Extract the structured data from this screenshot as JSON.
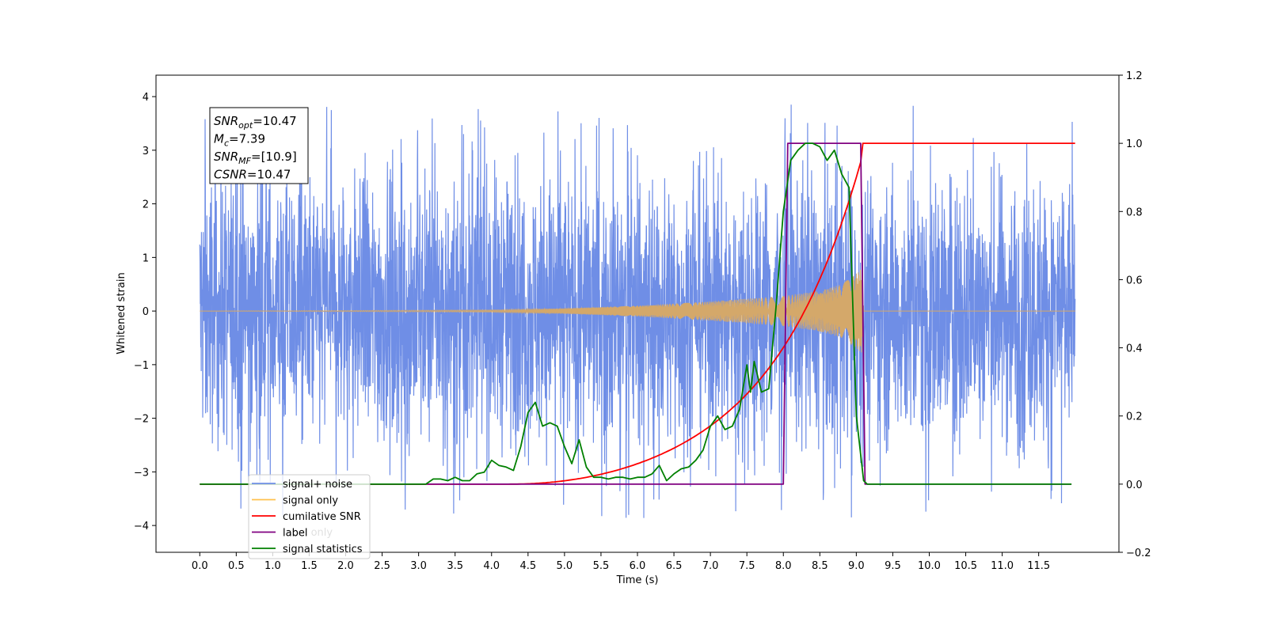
{
  "chart_data": {
    "type": "line",
    "xlabel": "Time (s)",
    "ylabel": "Whitened strain",
    "xlim": [
      -0.6,
      12.6
    ],
    "ylim_left": [
      -4.5,
      4.4
    ],
    "ylim_right": [
      -0.2,
      1.2
    ],
    "x_ticks": [
      "0.0",
      "0.5",
      "1.0",
      "1.5",
      "2.0",
      "2.5",
      "3.0",
      "3.5",
      "4.0",
      "4.5",
      "5.0",
      "5.5",
      "6.0",
      "6.5",
      "7.0",
      "7.5",
      "8.0",
      "8.5",
      "9.0",
      "9.5",
      "10.0",
      "10.5",
      "11.0",
      "11.5"
    ],
    "y_ticks_left": [
      "−4",
      "−3",
      "−2",
      "−1",
      "0",
      "1",
      "2",
      "3",
      "4"
    ],
    "y_ticks_right": [
      "−0.2",
      "0.0",
      "0.2",
      "0.4",
      "0.6",
      "0.8",
      "1.0",
      "1.2"
    ],
    "annotation": {
      "lines": [
        {
          "base": "SNR",
          "sub": "opt",
          "value": "=10.47"
        },
        {
          "base": "M",
          "sub": "c",
          "value": "=7.39"
        },
        {
          "base": "SNR",
          "sub": "MF",
          "value": "=[10.9]"
        },
        {
          "base": "CSNR",
          "sub": "",
          "value": "=10.47"
        }
      ]
    },
    "legend": {
      "location": "lower-left",
      "entries": [
        {
          "label": "signal+ noise",
          "color": "#6f8ee6"
        },
        {
          "label": "signal only",
          "color": "#ffc04d"
        },
        {
          "label": "cumilative SNR",
          "color": "#ff0000"
        },
        {
          "label": "label",
          "color": "#800080"
        },
        {
          "label": "signal statistics",
          "color": "#008000"
        }
      ],
      "hidden_text": "label only"
    },
    "series": [
      {
        "name": "signal+ noise",
        "axis": "left",
        "color": "#6f8ee6",
        "x_range": [
          0.0,
          12.0
        ],
        "envelope_typical": 2.0,
        "spike_max": 4.0,
        "spike_min": -4.1
      },
      {
        "name": "signal only",
        "axis": "left",
        "color": "#d4a86a",
        "x_range": [
          0.0,
          12.0
        ],
        "amplitude_envelope": {
          "x": [
            0.0,
            4.0,
            5.0,
            6.0,
            7.0,
            8.0,
            8.5,
            8.8,
            9.0,
            9.08,
            9.1,
            12.0
          ],
          "y": [
            0.0,
            0.02,
            0.05,
            0.1,
            0.18,
            0.28,
            0.38,
            0.5,
            0.7,
            0.8,
            0.0,
            0.0
          ]
        }
      },
      {
        "name": "cumilative SNR",
        "axis": "right",
        "color": "#ff0000",
        "x": [
          0.0,
          4.0,
          4.5,
          5.0,
          5.5,
          6.0,
          6.5,
          7.0,
          7.5,
          8.0,
          8.5,
          8.8,
          9.0,
          9.08,
          9.1,
          12.0
        ],
        "y": [
          0.0,
          0.0,
          0.003,
          0.015,
          0.05,
          0.11,
          0.17,
          0.23,
          0.31,
          0.42,
          0.57,
          0.7,
          0.85,
          0.96,
          1.0,
          1.0
        ]
      },
      {
        "name": "label",
        "axis": "right",
        "color": "#800080",
        "x": [
          0.0,
          8.0,
          8.06,
          9.06,
          9.12,
          11.95
        ],
        "y": [
          0.0,
          0.0,
          1.0,
          1.0,
          0.0,
          0.0
        ]
      },
      {
        "name": "signal statistics",
        "axis": "right",
        "color": "#008000",
        "x": [
          0.0,
          3.1,
          3.2,
          3.3,
          3.4,
          3.5,
          3.6,
          3.7,
          3.8,
          3.9,
          4.0,
          4.1,
          4.2,
          4.3,
          4.4,
          4.5,
          4.6,
          4.7,
          4.8,
          4.9,
          5.0,
          5.1,
          5.2,
          5.3,
          5.4,
          5.5,
          5.6,
          5.7,
          5.8,
          5.9,
          6.0,
          6.1,
          6.2,
          6.3,
          6.4,
          6.5,
          6.6,
          6.7,
          6.8,
          6.9,
          7.0,
          7.1,
          7.2,
          7.3,
          7.4,
          7.5,
          7.55,
          7.6,
          7.7,
          7.8,
          7.9,
          8.0,
          8.1,
          8.2,
          8.3,
          8.4,
          8.5,
          8.6,
          8.7,
          8.8,
          8.9,
          9.0,
          9.1,
          9.15,
          11.95
        ],
        "y": [
          0.0,
          0.0,
          0.015,
          0.015,
          0.01,
          0.02,
          0.01,
          0.01,
          0.03,
          0.035,
          0.07,
          0.055,
          0.05,
          0.04,
          0.11,
          0.21,
          0.24,
          0.17,
          0.18,
          0.17,
          0.11,
          0.06,
          0.13,
          0.05,
          0.02,
          0.02,
          0.015,
          0.02,
          0.02,
          0.015,
          0.02,
          0.02,
          0.03,
          0.055,
          0.01,
          0.03,
          0.045,
          0.05,
          0.07,
          0.1,
          0.17,
          0.2,
          0.16,
          0.17,
          0.22,
          0.35,
          0.27,
          0.36,
          0.27,
          0.28,
          0.52,
          0.8,
          0.95,
          0.98,
          1.0,
          1.0,
          0.99,
          0.95,
          0.98,
          0.91,
          0.87,
          0.2,
          0.01,
          0.0,
          0.0
        ]
      }
    ]
  }
}
